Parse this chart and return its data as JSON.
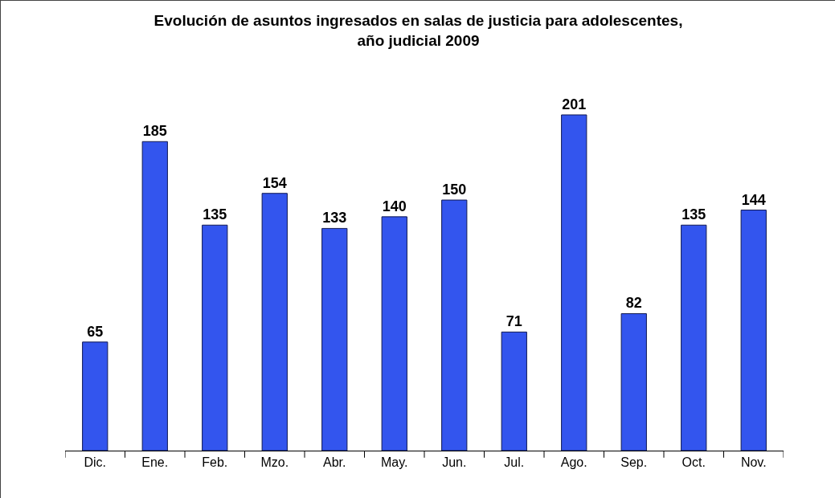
{
  "chart_data": {
    "type": "bar",
    "title": "Evolución de asuntos ingresados en salas de justicia para adolescentes,\naño judicial 2009",
    "categories": [
      "Dic.",
      "Ene.",
      "Feb.",
      "Mzo.",
      "Abr.",
      "May.",
      "Jun.",
      "Jul.",
      "Ago.",
      "Sep.",
      "Oct.",
      "Nov."
    ],
    "values": [
      65,
      185,
      135,
      154,
      133,
      140,
      150,
      71,
      201,
      82,
      135,
      144
    ],
    "color": "#3355ee",
    "data_labels": true,
    "grid": false,
    "legend": false,
    "tick_labels": "x"
  }
}
